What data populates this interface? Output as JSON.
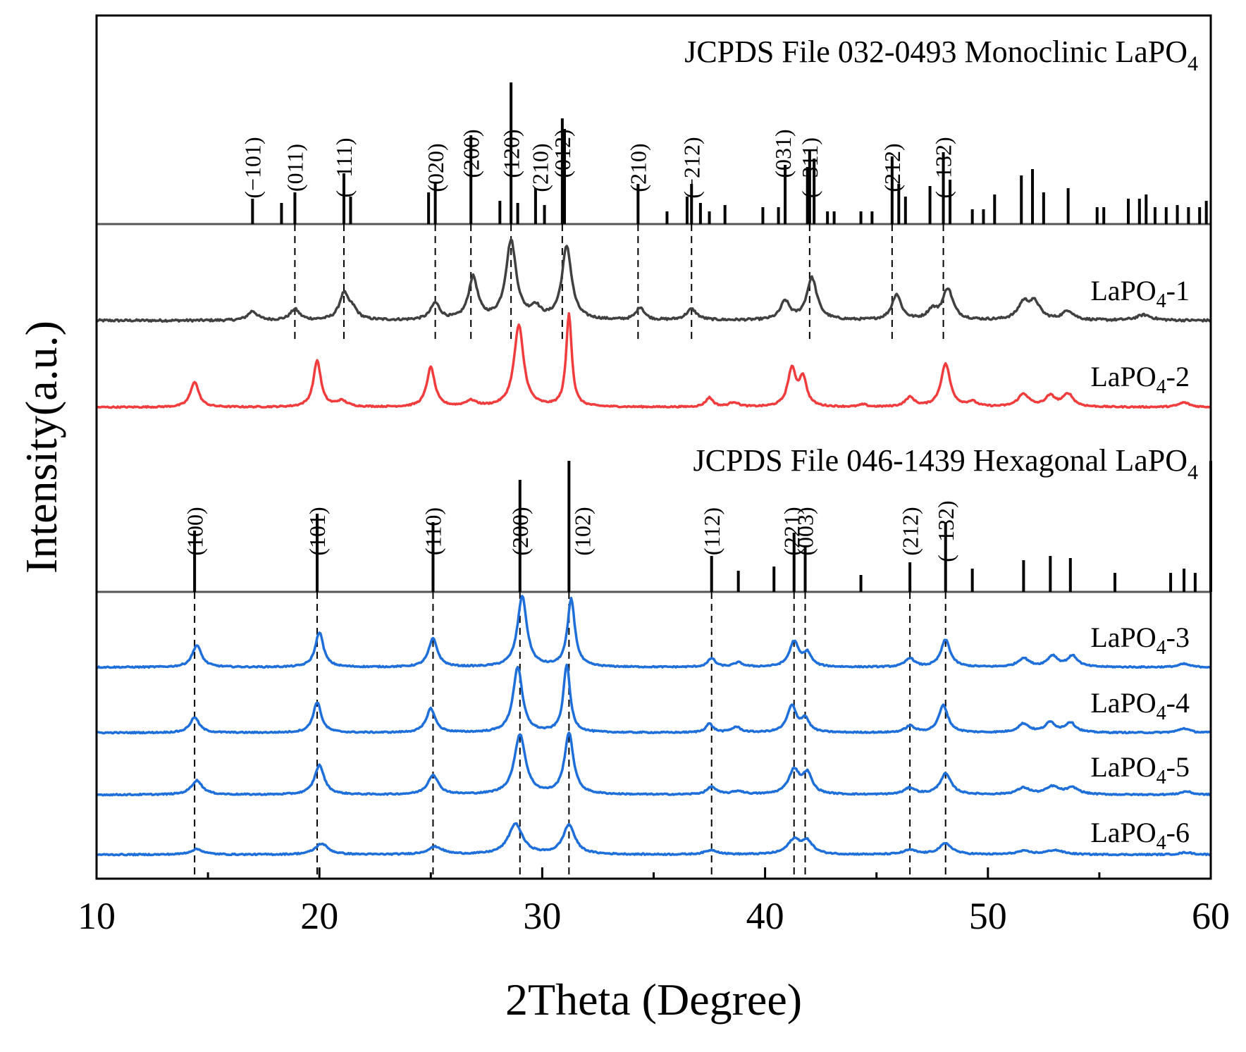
{
  "chart_data": {
    "type": "line",
    "title": "",
    "xlabel": "2Theta (Degree)",
    "ylabel": "Intensity(a.u.)",
    "xlim": [
      10,
      60
    ],
    "xticks": [
      10,
      20,
      30,
      40,
      50,
      60
    ],
    "x_tick_labels": [
      "10",
      "20",
      "30",
      "40",
      "50",
      "60"
    ],
    "grid": false,
    "legend": "sample labels placed at right end of each trace",
    "reference_patterns": [
      {
        "name": "JCPDS File  032-0493  Monoclinic LaPO4",
        "label_main": "JCPDS File  032-0493  Monoclinic LaPO",
        "label_sub": "4",
        "sticks": [
          {
            "x": 17.0,
            "h": 0.12
          },
          {
            "x": 18.3,
            "h": 0.1
          },
          {
            "x": 18.9,
            "h": 0.15
          },
          {
            "x": 21.1,
            "h": 0.24
          },
          {
            "x": 21.4,
            "h": 0.13
          },
          {
            "x": 24.9,
            "h": 0.15
          },
          {
            "x": 25.2,
            "h": 0.2
          },
          {
            "x": 26.8,
            "h": 0.42
          },
          {
            "x": 28.1,
            "h": 0.11
          },
          {
            "x": 28.6,
            "h": 0.67
          },
          {
            "x": 28.9,
            "h": 0.1
          },
          {
            "x": 29.7,
            "h": 0.17
          },
          {
            "x": 30.1,
            "h": 0.09
          },
          {
            "x": 30.9,
            "h": 0.5
          },
          {
            "x": 31.0,
            "h": 0.45
          },
          {
            "x": 34.3,
            "h": 0.19
          },
          {
            "x": 35.6,
            "h": 0.06
          },
          {
            "x": 36.5,
            "h": 0.13
          },
          {
            "x": 36.7,
            "h": 0.19
          },
          {
            "x": 37.1,
            "h": 0.1
          },
          {
            "x": 37.5,
            "h": 0.06
          },
          {
            "x": 38.2,
            "h": 0.09
          },
          {
            "x": 39.9,
            "h": 0.08
          },
          {
            "x": 40.6,
            "h": 0.08
          },
          {
            "x": 40.9,
            "h": 0.28
          },
          {
            "x": 41.9,
            "h": 0.27
          },
          {
            "x": 42.0,
            "h": 0.35
          },
          {
            "x": 42.2,
            "h": 0.31
          },
          {
            "x": 42.8,
            "h": 0.06
          },
          {
            "x": 43.1,
            "h": 0.06
          },
          {
            "x": 44.3,
            "h": 0.06
          },
          {
            "x": 44.8,
            "h": 0.06
          },
          {
            "x": 45.7,
            "h": 0.32
          },
          {
            "x": 46.0,
            "h": 0.19
          },
          {
            "x": 46.3,
            "h": 0.13
          },
          {
            "x": 47.4,
            "h": 0.18
          },
          {
            "x": 48.0,
            "h": 0.34
          },
          {
            "x": 48.3,
            "h": 0.21
          },
          {
            "x": 49.3,
            "h": 0.07
          },
          {
            "x": 49.8,
            "h": 0.07
          },
          {
            "x": 50.3,
            "h": 0.14
          },
          {
            "x": 51.5,
            "h": 0.23
          },
          {
            "x": 52.0,
            "h": 0.26
          },
          {
            "x": 52.5,
            "h": 0.15
          },
          {
            "x": 53.6,
            "h": 0.17
          },
          {
            "x": 54.9,
            "h": 0.08
          },
          {
            "x": 55.2,
            "h": 0.08
          },
          {
            "x": 56.3,
            "h": 0.12
          },
          {
            "x": 56.8,
            "h": 0.12
          },
          {
            "x": 57.1,
            "h": 0.14
          },
          {
            "x": 57.5,
            "h": 0.08
          },
          {
            "x": 58.0,
            "h": 0.08
          },
          {
            "x": 58.5,
            "h": 0.09
          },
          {
            "x": 59.0,
            "h": 0.08
          },
          {
            "x": 59.5,
            "h": 0.08
          },
          {
            "x": 59.8,
            "h": 0.11
          }
        ],
        "hkl": [
          {
            "x": 17.0,
            "label": "(−101)"
          },
          {
            "x": 18.9,
            "label": "(011)"
          },
          {
            "x": 21.1,
            "label": "(−111)"
          },
          {
            "x": 25.2,
            "label": "(020)"
          },
          {
            "x": 26.8,
            "label": "(200)"
          },
          {
            "x": 28.6,
            "label": "(120)"
          },
          {
            "x": 29.9,
            "label": "(210)"
          },
          {
            "x": 30.9,
            "label": "(012)"
          },
          {
            "x": 34.3,
            "label": "(210)"
          },
          {
            "x": 36.7,
            "label": "(−212)"
          },
          {
            "x": 40.8,
            "label": "(031)"
          },
          {
            "x": 42.0,
            "label": "(−311)"
          },
          {
            "x": 45.7,
            "label": "(212)"
          },
          {
            "x": 48.0,
            "label": "(−132)"
          }
        ],
        "dashed_refs": [
          18.9,
          21.1,
          25.2,
          26.8,
          28.6,
          30.9,
          34.3,
          36.7,
          42.0,
          45.7,
          48.0
        ]
      },
      {
        "name": "JCPDS File  046-1439 Hexagonal LaPO4",
        "label_main": "JCPDS File  046-1439 Hexagonal LaPO",
        "label_sub": "4",
        "sticks": [
          {
            "x": 14.4,
            "h": 0.29
          },
          {
            "x": 19.9,
            "h": 0.37
          },
          {
            "x": 25.1,
            "h": 0.33
          },
          {
            "x": 29.0,
            "h": 0.53
          },
          {
            "x": 31.2,
            "h": 0.62
          },
          {
            "x": 37.6,
            "h": 0.17
          },
          {
            "x": 38.8,
            "h": 0.1
          },
          {
            "x": 40.4,
            "h": 0.12
          },
          {
            "x": 41.3,
            "h": 0.28
          },
          {
            "x": 41.8,
            "h": 0.22
          },
          {
            "x": 44.3,
            "h": 0.08
          },
          {
            "x": 46.5,
            "h": 0.14
          },
          {
            "x": 48.1,
            "h": 0.33
          },
          {
            "x": 49.3,
            "h": 0.11
          },
          {
            "x": 51.6,
            "h": 0.15
          },
          {
            "x": 52.8,
            "h": 0.17
          },
          {
            "x": 53.7,
            "h": 0.16
          },
          {
            "x": 55.7,
            "h": 0.09
          },
          {
            "x": 58.2,
            "h": 0.09
          },
          {
            "x": 58.8,
            "h": 0.11
          },
          {
            "x": 59.3,
            "h": 0.09
          },
          {
            "x": 60.0,
            "h": 0.62
          }
        ],
        "hkl": [
          {
            "x": 14.4,
            "label": "(100)"
          },
          {
            "x": 19.9,
            "label": "(101)"
          },
          {
            "x": 25.1,
            "label": "(110)"
          },
          {
            "x": 29.0,
            "label": "(200)"
          },
          {
            "x": 31.8,
            "label": "(102)"
          },
          {
            "x": 37.6,
            "label": "(112)"
          },
          {
            "x": 41.2,
            "label": "(221)"
          },
          {
            "x": 41.8,
            "label": "(003)"
          },
          {
            "x": 46.5,
            "label": "(212)"
          },
          {
            "x": 48.1,
            "label": "(−132)"
          }
        ],
        "dashed_refs": [
          14.4,
          19.9,
          25.1,
          29.0,
          31.2,
          37.6,
          41.3,
          41.8,
          46.5,
          48.1
        ]
      }
    ],
    "series": [
      {
        "name": "LaPO4-1",
        "label_main": "LaPO",
        "label_sub": "4",
        "label_suffix": "-1",
        "color": "#404040",
        "baseline": 0.0,
        "peaks": [
          {
            "x": 17.0,
            "h": 0.05,
            "w": 0.25
          },
          {
            "x": 18.9,
            "h": 0.06,
            "w": 0.25
          },
          {
            "x": 21.1,
            "h": 0.14,
            "w": 0.25
          },
          {
            "x": 21.5,
            "h": 0.05,
            "w": 0.25
          },
          {
            "x": 25.2,
            "h": 0.09,
            "w": 0.25
          },
          {
            "x": 26.9,
            "h": 0.23,
            "w": 0.25
          },
          {
            "x": 28.6,
            "h": 0.43,
            "w": 0.28
          },
          {
            "x": 29.7,
            "h": 0.06,
            "w": 0.25
          },
          {
            "x": 31.1,
            "h": 0.4,
            "w": 0.26
          },
          {
            "x": 34.4,
            "h": 0.07,
            "w": 0.22
          },
          {
            "x": 36.7,
            "h": 0.06,
            "w": 0.28
          },
          {
            "x": 40.9,
            "h": 0.1,
            "w": 0.25
          },
          {
            "x": 42.1,
            "h": 0.23,
            "w": 0.28
          },
          {
            "x": 45.9,
            "h": 0.14,
            "w": 0.25
          },
          {
            "x": 47.5,
            "h": 0.05,
            "w": 0.25
          },
          {
            "x": 48.2,
            "h": 0.17,
            "w": 0.28
          },
          {
            "x": 51.6,
            "h": 0.09,
            "w": 0.3
          },
          {
            "x": 52.1,
            "h": 0.09,
            "w": 0.3
          },
          {
            "x": 53.6,
            "h": 0.05,
            "w": 0.3
          },
          {
            "x": 57.0,
            "h": 0.03,
            "w": 0.4
          }
        ]
      },
      {
        "name": "LaPO4-2",
        "label_main": "LaPO",
        "label_sub": "4",
        "label_suffix": "-2",
        "color": "#f03c3c",
        "baseline": 0.0,
        "peaks": [
          {
            "x": 14.4,
            "h": 0.22,
            "w": 0.22
          },
          {
            "x": 19.9,
            "h": 0.4,
            "w": 0.2
          },
          {
            "x": 21.0,
            "h": 0.05,
            "w": 0.3
          },
          {
            "x": 25.0,
            "h": 0.34,
            "w": 0.22
          },
          {
            "x": 26.8,
            "h": 0.05,
            "w": 0.3
          },
          {
            "x": 28.95,
            "h": 0.7,
            "w": 0.26
          },
          {
            "x": 31.2,
            "h": 0.8,
            "w": 0.15
          },
          {
            "x": 37.5,
            "h": 0.08,
            "w": 0.2
          },
          {
            "x": 38.6,
            "h": 0.04,
            "w": 0.25
          },
          {
            "x": 41.2,
            "h": 0.32,
            "w": 0.22
          },
          {
            "x": 41.7,
            "h": 0.24,
            "w": 0.2
          },
          {
            "x": 44.4,
            "h": 0.02,
            "w": 0.2
          },
          {
            "x": 46.5,
            "h": 0.08,
            "w": 0.25
          },
          {
            "x": 48.1,
            "h": 0.37,
            "w": 0.25
          },
          {
            "x": 49.3,
            "h": 0.04,
            "w": 0.25
          },
          {
            "x": 51.6,
            "h": 0.11,
            "w": 0.3
          },
          {
            "x": 52.8,
            "h": 0.09,
            "w": 0.28
          },
          {
            "x": 53.6,
            "h": 0.11,
            "w": 0.28
          },
          {
            "x": 58.8,
            "h": 0.04,
            "w": 0.3
          }
        ]
      },
      {
        "name": "LaPO4-3",
        "label_main": "LaPO",
        "label_sub": "4",
        "label_suffix": "-3",
        "color": "#1e6fd9",
        "baseline": 0.0,
        "peaks": [
          {
            "x": 14.5,
            "h": 0.2,
            "w": 0.25
          },
          {
            "x": 20.0,
            "h": 0.32,
            "w": 0.22
          },
          {
            "x": 25.1,
            "h": 0.26,
            "w": 0.24
          },
          {
            "x": 29.1,
            "h": 0.65,
            "w": 0.25
          },
          {
            "x": 31.3,
            "h": 0.62,
            "w": 0.2
          },
          {
            "x": 37.6,
            "h": 0.08,
            "w": 0.2
          },
          {
            "x": 38.8,
            "h": 0.04,
            "w": 0.25
          },
          {
            "x": 41.3,
            "h": 0.23,
            "w": 0.25
          },
          {
            "x": 41.9,
            "h": 0.12,
            "w": 0.22
          },
          {
            "x": 46.5,
            "h": 0.08,
            "w": 0.25
          },
          {
            "x": 48.1,
            "h": 0.25,
            "w": 0.25
          },
          {
            "x": 51.6,
            "h": 0.08,
            "w": 0.3
          },
          {
            "x": 52.9,
            "h": 0.1,
            "w": 0.28
          },
          {
            "x": 53.8,
            "h": 0.1,
            "w": 0.28
          },
          {
            "x": 58.8,
            "h": 0.03,
            "w": 0.3
          }
        ]
      },
      {
        "name": "LaPO4-4",
        "label_main": "LaPO",
        "label_sub": "4",
        "label_suffix": "-4",
        "color": "#1e6fd9",
        "baseline": 0.0,
        "peaks": [
          {
            "x": 14.4,
            "h": 0.14,
            "w": 0.25
          },
          {
            "x": 19.9,
            "h": 0.28,
            "w": 0.22
          },
          {
            "x": 25.0,
            "h": 0.22,
            "w": 0.24
          },
          {
            "x": 28.9,
            "h": 0.6,
            "w": 0.25
          },
          {
            "x": 31.1,
            "h": 0.62,
            "w": 0.18
          },
          {
            "x": 37.5,
            "h": 0.08,
            "w": 0.2
          },
          {
            "x": 38.7,
            "h": 0.05,
            "w": 0.25
          },
          {
            "x": 41.2,
            "h": 0.24,
            "w": 0.25
          },
          {
            "x": 41.8,
            "h": 0.12,
            "w": 0.22
          },
          {
            "x": 46.5,
            "h": 0.06,
            "w": 0.25
          },
          {
            "x": 48.0,
            "h": 0.25,
            "w": 0.25
          },
          {
            "x": 51.6,
            "h": 0.08,
            "w": 0.3
          },
          {
            "x": 52.8,
            "h": 0.09,
            "w": 0.28
          },
          {
            "x": 53.7,
            "h": 0.09,
            "w": 0.28
          },
          {
            "x": 58.8,
            "h": 0.04,
            "w": 0.3
          }
        ]
      },
      {
        "name": "LaPO4-5",
        "label_main": "LaPO",
        "label_sub": "4",
        "label_suffix": "-5",
        "color": "#1e6fd9",
        "baseline": 0.0,
        "peaks": [
          {
            "x": 14.5,
            "h": 0.13,
            "w": 0.3
          },
          {
            "x": 20.0,
            "h": 0.27,
            "w": 0.26
          },
          {
            "x": 25.1,
            "h": 0.18,
            "w": 0.28
          },
          {
            "x": 29.0,
            "h": 0.55,
            "w": 0.3
          },
          {
            "x": 31.2,
            "h": 0.56,
            "w": 0.24
          },
          {
            "x": 37.6,
            "h": 0.07,
            "w": 0.25
          },
          {
            "x": 38.8,
            "h": 0.03,
            "w": 0.3
          },
          {
            "x": 41.3,
            "h": 0.22,
            "w": 0.3
          },
          {
            "x": 41.9,
            "h": 0.18,
            "w": 0.25
          },
          {
            "x": 46.5,
            "h": 0.06,
            "w": 0.3
          },
          {
            "x": 48.1,
            "h": 0.19,
            "w": 0.3
          },
          {
            "x": 51.6,
            "h": 0.06,
            "w": 0.35
          },
          {
            "x": 52.9,
            "h": 0.07,
            "w": 0.35
          },
          {
            "x": 53.8,
            "h": 0.06,
            "w": 0.35
          },
          {
            "x": 58.9,
            "h": 0.03,
            "w": 0.3
          }
        ]
      },
      {
        "name": "LaPO4-6",
        "label_main": "LaPO",
        "label_sub": "4",
        "label_suffix": "-6",
        "color": "#1e6fd9",
        "baseline": 0.0,
        "peaks": [
          {
            "x": 14.5,
            "h": 0.05,
            "w": 0.35
          },
          {
            "x": 20.1,
            "h": 0.1,
            "w": 0.35
          },
          {
            "x": 25.2,
            "h": 0.07,
            "w": 0.4
          },
          {
            "x": 28.8,
            "h": 0.28,
            "w": 0.38
          },
          {
            "x": 31.2,
            "h": 0.27,
            "w": 0.32
          },
          {
            "x": 37.6,
            "h": 0.04,
            "w": 0.35
          },
          {
            "x": 41.3,
            "h": 0.13,
            "w": 0.35
          },
          {
            "x": 41.9,
            "h": 0.11,
            "w": 0.3
          },
          {
            "x": 46.5,
            "h": 0.04,
            "w": 0.35
          },
          {
            "x": 48.1,
            "h": 0.1,
            "w": 0.35
          },
          {
            "x": 51.6,
            "h": 0.03,
            "w": 0.4
          },
          {
            "x": 53.0,
            "h": 0.04,
            "w": 0.45
          },
          {
            "x": 58.9,
            "h": 0.02,
            "w": 0.35
          }
        ]
      }
    ]
  }
}
